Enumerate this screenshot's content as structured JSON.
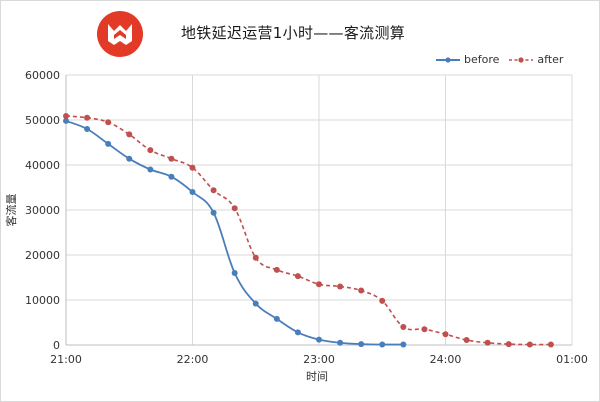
{
  "chart_data": {
    "type": "line",
    "title": "地铁延迟运营1小时——客流测算",
    "xlabel": "时间",
    "ylabel": "客流量",
    "ylim": [
      0,
      60000
    ],
    "y_ticks": [
      "0",
      "10000",
      "20000",
      "30000",
      "40000",
      "50000",
      "60000"
    ],
    "xlim": [
      "21:00",
      "25:00"
    ],
    "x_ticks": [
      "21:00",
      "22:00",
      "23:00",
      "24:00",
      "01:00"
    ],
    "grid": true,
    "legend_position": "top-right",
    "series": [
      {
        "name": "before",
        "color": "#4a7ebb",
        "style": "solid",
        "x": [
          "21:00",
          "21:10",
          "21:20",
          "21:30",
          "21:40",
          "21:50",
          "22:00",
          "22:10",
          "22:20",
          "22:30",
          "22:40",
          "22:50",
          "23:00",
          "23:10",
          "23:20",
          "23:30",
          "23:40"
        ],
        "values": [
          49800,
          48000,
          44700,
          41400,
          39000,
          37400,
          34000,
          29400,
          16000,
          9200,
          5800,
          2800,
          1200,
          500,
          200,
          100,
          100
        ]
      },
      {
        "name": "after",
        "color": "#c0504d",
        "style": "dashed",
        "x": [
          "21:00",
          "21:10",
          "21:20",
          "21:30",
          "21:40",
          "21:50",
          "22:00",
          "22:10",
          "22:20",
          "22:30",
          "22:40",
          "22:50",
          "23:00",
          "23:10",
          "23:20",
          "23:30",
          "23:40",
          "23:50",
          "24:00",
          "24:10",
          "24:20",
          "24:30",
          "24:40",
          "24:50"
        ],
        "values": [
          50900,
          50500,
          49500,
          46800,
          43300,
          41400,
          39400,
          34400,
          30400,
          19400,
          16700,
          15300,
          13500,
          13000,
          12100,
          9800,
          4000,
          3500,
          2400,
          1100,
          500,
          200,
          100,
          100
        ]
      }
    ]
  }
}
